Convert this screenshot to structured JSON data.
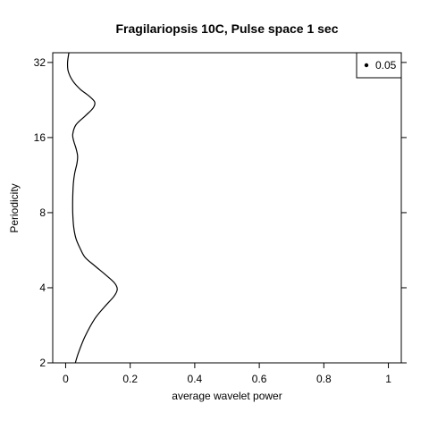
{
  "chart_data": {
    "type": "line",
    "title": "Fragilariopsis 10C, Pulse space 1 sec",
    "xlabel": "average wavelet power",
    "ylabel": "Periodicity",
    "xlim": [
      -0.04,
      1.04
    ],
    "ylim": [
      2,
      35
    ],
    "y_scale": "log2",
    "x_ticks": [
      0,
      0.2,
      0.4,
      0.6,
      0.8,
      1
    ],
    "x_tick_labels": [
      "0",
      "0.2",
      "0.4",
      "0.6",
      "0.8",
      "1"
    ],
    "y_ticks": [
      2,
      4,
      8,
      16,
      32
    ],
    "y_tick_labels": [
      "2",
      "4",
      "8",
      "16",
      "32"
    ],
    "grid": false,
    "legend": {
      "position": "top-right",
      "entries": [
        {
          "label": "0.05",
          "marker": "point"
        }
      ]
    },
    "series": [
      {
        "points": [
          [
            0.03,
            2.0
          ],
          [
            0.04,
            2.2
          ],
          [
            0.06,
            2.55
          ],
          [
            0.09,
            3.0
          ],
          [
            0.12,
            3.35
          ],
          [
            0.15,
            3.7
          ],
          [
            0.16,
            3.95
          ],
          [
            0.15,
            4.2
          ],
          [
            0.12,
            4.55
          ],
          [
            0.09,
            4.9
          ],
          [
            0.06,
            5.3
          ],
          [
            0.045,
            5.75
          ],
          [
            0.032,
            6.3
          ],
          [
            0.025,
            7.0
          ],
          [
            0.022,
            8.0
          ],
          [
            0.022,
            9.2
          ],
          [
            0.024,
            10.5
          ],
          [
            0.028,
            11.5
          ],
          [
            0.035,
            12.6
          ],
          [
            0.037,
            13.5
          ],
          [
            0.032,
            14.5
          ],
          [
            0.025,
            15.5
          ],
          [
            0.022,
            16.5
          ],
          [
            0.032,
            18.0
          ],
          [
            0.06,
            19.5
          ],
          [
            0.085,
            21.0
          ],
          [
            0.09,
            22.2
          ],
          [
            0.072,
            23.5
          ],
          [
            0.045,
            25.0
          ],
          [
            0.022,
            27.0
          ],
          [
            0.008,
            29.5
          ],
          [
            0.006,
            32.0
          ],
          [
            0.01,
            35.0
          ]
        ]
      }
    ]
  }
}
